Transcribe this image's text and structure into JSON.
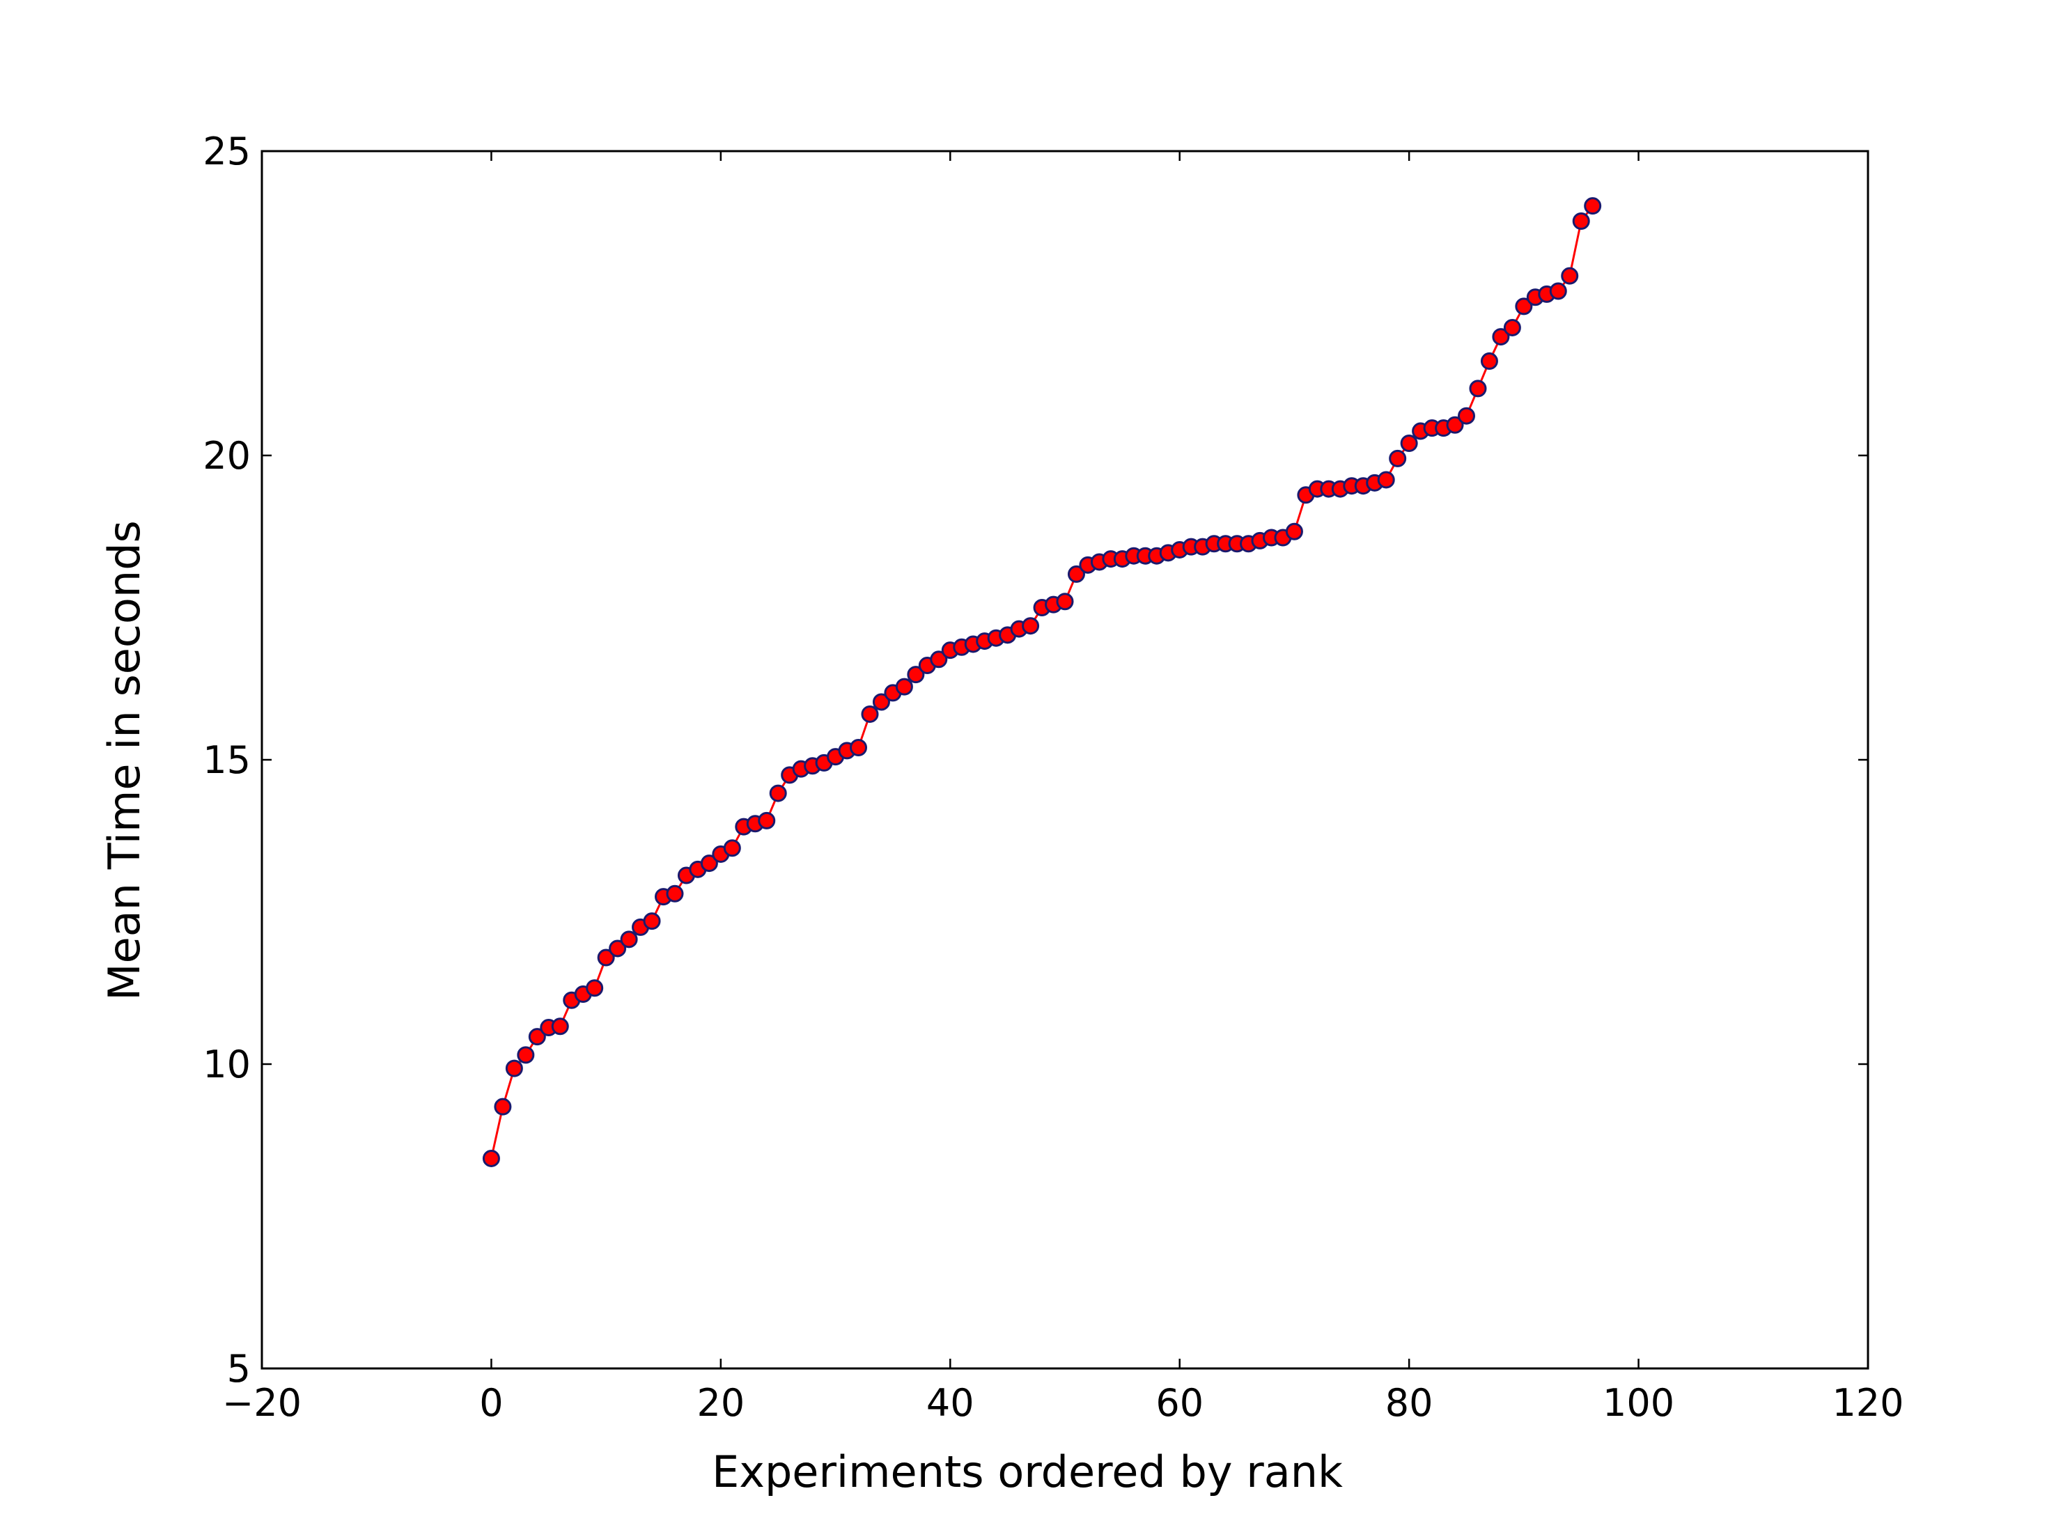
{
  "chart_data": {
    "type": "line",
    "title": "",
    "xlabel": "Experiments ordered by rank",
    "ylabel": "Mean Time in seconds",
    "xlim": [
      -20,
      120
    ],
    "ylim": [
      5,
      25
    ],
    "xticks": [
      -20,
      0,
      20,
      40,
      60,
      80,
      100,
      120
    ],
    "xtick_labels": [
      "−20",
      "0",
      "20",
      "40",
      "60",
      "80",
      "100",
      "120"
    ],
    "yticks": [
      5,
      10,
      15,
      20,
      25
    ],
    "ytick_labels": [
      "5",
      "10",
      "15",
      "20",
      "25"
    ],
    "grid": false,
    "legend": "none",
    "colors": {
      "line": "#ff0000",
      "marker_fill": "#ff0000",
      "marker_edge": "#1a1a6e"
    },
    "series": [
      {
        "x": [
          0,
          1,
          2,
          3,
          4,
          5,
          6,
          7,
          8,
          9,
          10,
          11,
          12,
          13,
          14,
          15,
          16,
          17,
          18,
          19,
          20,
          21,
          22,
          23,
          24,
          25,
          26,
          27,
          28,
          29,
          30,
          31,
          32,
          33,
          34,
          35,
          36,
          37,
          38,
          39,
          40,
          41,
          42,
          43,
          44,
          45,
          46,
          47,
          48,
          49,
          50,
          51,
          52,
          53,
          54,
          55,
          56,
          57,
          58,
          59,
          60,
          61,
          62,
          63,
          64,
          65,
          66,
          67,
          68,
          69,
          70,
          71,
          72,
          73,
          74,
          75,
          76,
          77,
          78,
          79,
          80,
          81,
          82,
          83,
          84,
          85,
          86,
          87,
          88,
          89,
          90,
          91,
          92,
          93,
          94,
          95,
          96
        ],
        "values": [
          8.45,
          9.3,
          9.93,
          10.15,
          10.45,
          10.6,
          10.62,
          11.05,
          11.15,
          11.25,
          11.75,
          11.9,
          12.05,
          12.25,
          12.35,
          12.75,
          12.8,
          13.1,
          13.2,
          13.3,
          13.45,
          13.55,
          13.9,
          13.95,
          14.0,
          14.45,
          14.75,
          14.85,
          14.9,
          14.95,
          15.05,
          15.15,
          15.2,
          15.75,
          15.95,
          16.1,
          16.2,
          16.4,
          16.55,
          16.65,
          16.8,
          16.85,
          16.9,
          16.95,
          17.0,
          17.05,
          17.15,
          17.2,
          17.5,
          17.55,
          17.6,
          18.05,
          18.2,
          18.25,
          18.3,
          18.3,
          18.35,
          18.35,
          18.35,
          18.4,
          18.45,
          18.5,
          18.5,
          18.55,
          18.55,
          18.55,
          18.55,
          18.6,
          18.65,
          18.65,
          18.75,
          19.35,
          19.45,
          19.45,
          19.45,
          19.5,
          19.5,
          19.55,
          19.6,
          19.95,
          20.2,
          20.4,
          20.45,
          20.45,
          20.5,
          20.65,
          21.1,
          21.55,
          21.95,
          22.1,
          22.45,
          22.6,
          22.65,
          22.7,
          22.95,
          23.85,
          24.1
        ]
      }
    ]
  }
}
